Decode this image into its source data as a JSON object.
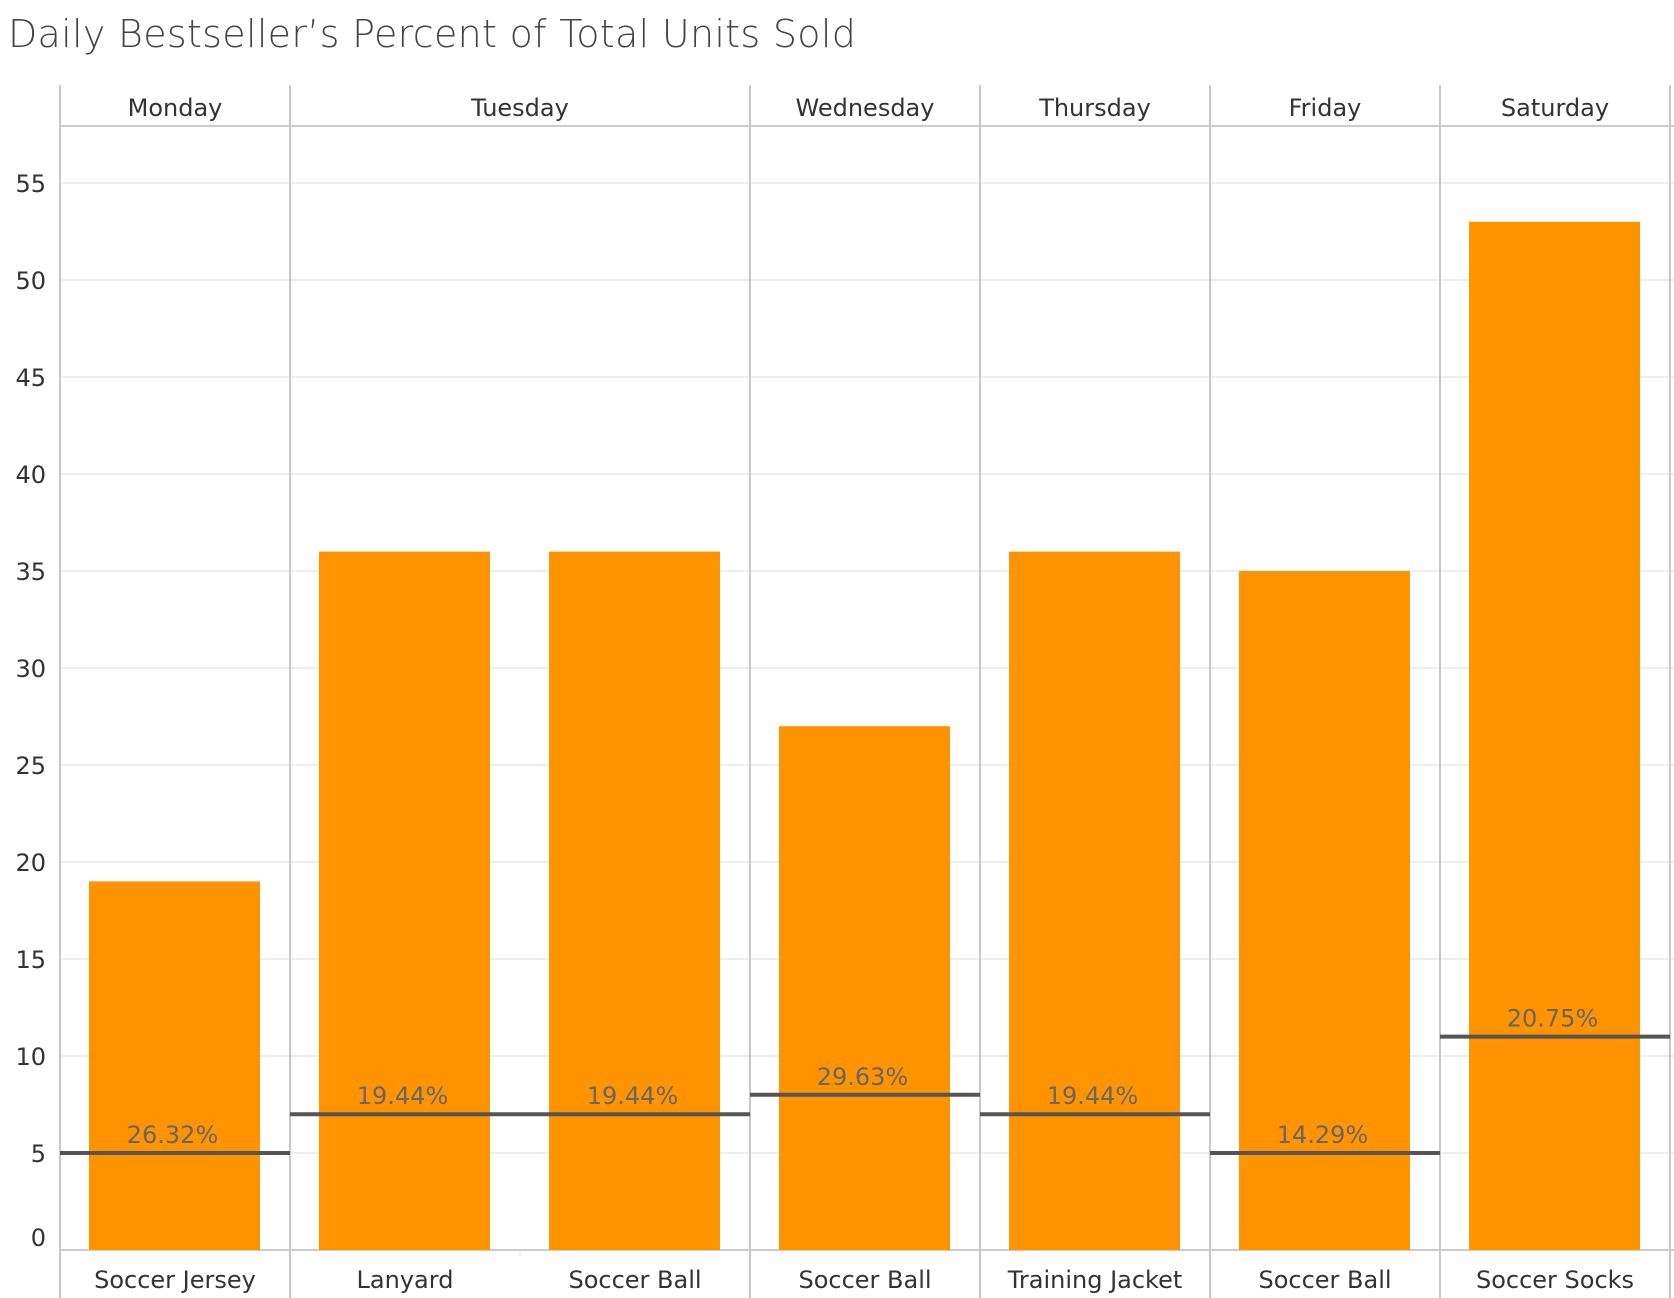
{
  "chart_data": {
    "type": "bar",
    "title": "Daily Bestseller’s Percent of Total Units Sold",
    "xlabel": "",
    "ylabel": "",
    "ylim": [
      0,
      58
    ],
    "yticks": [
      0,
      5,
      10,
      15,
      20,
      25,
      30,
      35,
      40,
      45,
      50,
      55
    ],
    "grid": true,
    "bar_color": "#FF9400",
    "reference_line_color": "#555555",
    "groups": [
      {
        "label": "Monday",
        "items": [
          {
            "product": "Soccer Jersey",
            "value": 19,
            "ref_value": 5,
            "ref_label": "26.32%"
          }
        ]
      },
      {
        "label": "Tuesday",
        "items": [
          {
            "product": "Lanyard",
            "value": 36,
            "ref_value": 7,
            "ref_label": "19.44%"
          },
          {
            "product": "Soccer Ball",
            "value": 36,
            "ref_value": 7,
            "ref_label": "19.44%"
          }
        ]
      },
      {
        "label": "Wednesday",
        "items": [
          {
            "product": "Soccer Ball",
            "value": 27,
            "ref_value": 8,
            "ref_label": "29.63%"
          }
        ]
      },
      {
        "label": "Thursday",
        "items": [
          {
            "product": "Training Jacket",
            "value": 36,
            "ref_value": 7,
            "ref_label": "19.44%"
          }
        ]
      },
      {
        "label": "Friday",
        "items": [
          {
            "product": "Soccer Ball",
            "value": 35,
            "ref_value": 5,
            "ref_label": "14.29%"
          }
        ]
      },
      {
        "label": "Saturday",
        "items": [
          {
            "product": "Soccer Socks",
            "value": 53,
            "ref_value": 11,
            "ref_label": "20.75%"
          }
        ]
      }
    ]
  }
}
